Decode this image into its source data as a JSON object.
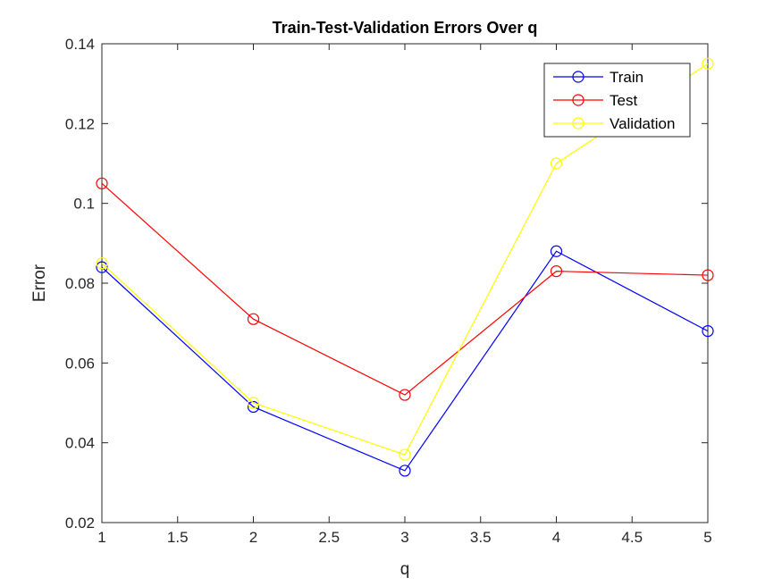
{
  "chart_data": {
    "type": "line",
    "title": "Train-Test-Validation Errors Over q",
    "xlabel": "q",
    "ylabel": "Error",
    "x": [
      1,
      2,
      3,
      4,
      5
    ],
    "xlim": [
      1,
      5
    ],
    "ylim": [
      0.02,
      0.14
    ],
    "xticks": [
      "1",
      "1.5",
      "2",
      "2.5",
      "3",
      "3.5",
      "4",
      "4.5",
      "5"
    ],
    "yticks": [
      "0.02",
      "0.04",
      "0.06",
      "0.08",
      "0.1",
      "0.12",
      "0.14"
    ],
    "grid": false,
    "legend_position": "top-right",
    "marker": "circle",
    "series": [
      {
        "name": "Train",
        "color": "#0000ff",
        "values": [
          0.084,
          0.049,
          0.033,
          0.088,
          0.068
        ]
      },
      {
        "name": "Test",
        "color": "#ff0000",
        "values": [
          0.105,
          0.071,
          0.052,
          0.083,
          0.082
        ]
      },
      {
        "name": "Validation",
        "color": "#ffff00",
        "values": [
          0.085,
          0.05,
          0.037,
          0.11,
          0.135
        ]
      }
    ]
  }
}
